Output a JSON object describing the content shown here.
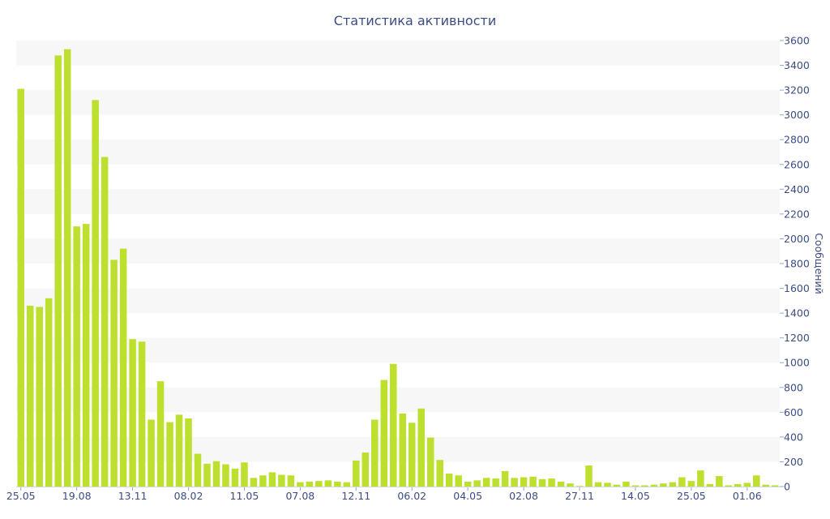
{
  "chart_data": {
    "type": "bar",
    "title": "Статистика активности",
    "ylabel": "Сообщений",
    "ylim": [
      0,
      3600
    ],
    "y_ticks": [
      0,
      200,
      400,
      600,
      800,
      1000,
      1200,
      1400,
      1600,
      1800,
      2000,
      2200,
      2400,
      2600,
      2800,
      3000,
      3200,
      3400,
      3600
    ],
    "y_axis_side": "right",
    "grid": "alternating horizontal bands",
    "x_tick_labels": [
      {
        "index": 0,
        "label": "25.05"
      },
      {
        "index": 6,
        "label": "19.08"
      },
      {
        "index": 12,
        "label": "13.11"
      },
      {
        "index": 18,
        "label": "08.02"
      },
      {
        "index": 24,
        "label": "11.05"
      },
      {
        "index": 30,
        "label": "07.08"
      },
      {
        "index": 36,
        "label": "12.11"
      },
      {
        "index": 42,
        "label": "06.02"
      },
      {
        "index": 48,
        "label": "04.05"
      },
      {
        "index": 54,
        "label": "02.08"
      },
      {
        "index": 60,
        "label": "27.11"
      },
      {
        "index": 66,
        "label": "14.05"
      },
      {
        "index": 72,
        "label": "25.05"
      },
      {
        "index": 78,
        "label": "01.06"
      }
    ],
    "values": [
      3210,
      1460,
      1450,
      1520,
      3480,
      3530,
      2100,
      2120,
      3120,
      2660,
      1830,
      1920,
      1190,
      1170,
      540,
      850,
      520,
      580,
      550,
      265,
      185,
      205,
      180,
      145,
      195,
      70,
      90,
      115,
      95,
      90,
      35,
      40,
      45,
      50,
      40,
      35,
      210,
      275,
      540,
      860,
      990,
      590,
      515,
      630,
      395,
      215,
      105,
      90,
      40,
      50,
      70,
      65,
      125,
      70,
      75,
      80,
      60,
      65,
      40,
      25,
      5,
      170,
      35,
      30,
      15,
      40,
      10,
      10,
      15,
      25,
      35,
      75,
      45,
      130,
      20,
      85,
      10,
      20,
      30,
      90,
      15,
      10
    ],
    "bar_color": "#bde02e"
  }
}
